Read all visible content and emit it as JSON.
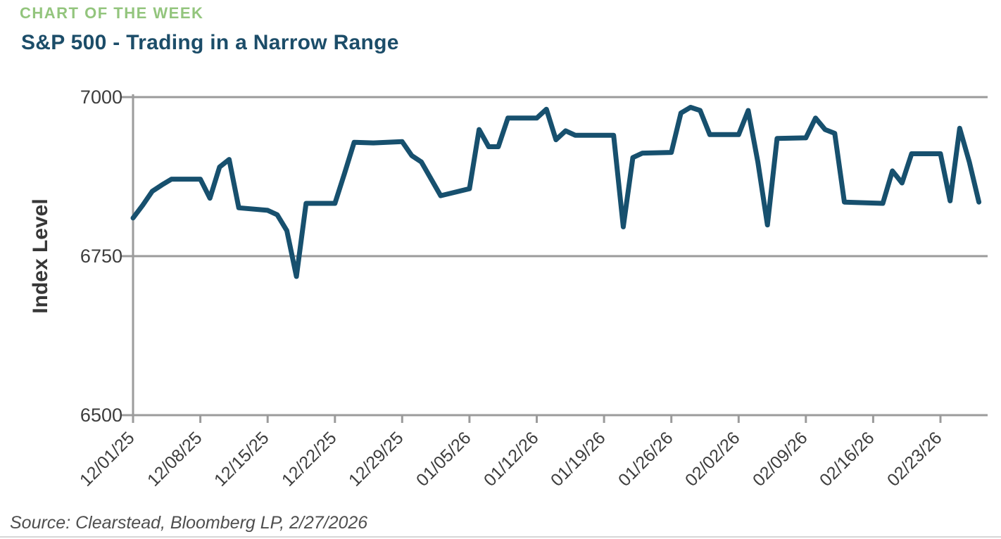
{
  "header": {
    "eyebrow": "CHART OF THE WEEK",
    "title": "S&P 500 - Trading in a Narrow Range"
  },
  "footer": {
    "source": "Source: Clearstead, Bloomberg LP, 2/27/2026"
  },
  "colors": {
    "eyebrow_green": "#93C57D",
    "title_navy": "#1C4D69",
    "line_blue": "#17506E",
    "axis_gray": "#9B9B9B",
    "tick_label_gray": "#3D3D3D",
    "source_gray": "#4F4F4F"
  },
  "chart_data": {
    "type": "line",
    "title": "S&P 500 - Trading in a Narrow Range",
    "xlabel": "",
    "ylabel": "Index Level",
    "ylim": [
      6500,
      7000
    ],
    "y_ticks": [
      7000,
      6750,
      6500
    ],
    "x_tick_labels": [
      "12/01/25",
      "12/08/25",
      "12/15/25",
      "12/22/25",
      "12/29/25",
      "01/05/26",
      "01/12/26",
      "01/19/26",
      "01/26/26",
      "02/02/26",
      "02/09/26",
      "02/16/26",
      "02/23/26"
    ],
    "grid": "horizontal-gridlines-at-y-ticks",
    "legend": "none",
    "series": [
      {
        "name": "S&P 500 Index Level",
        "color": "#17506E",
        "points": [
          {
            "date": "12/01/25",
            "value": 6810
          },
          {
            "date": "12/02/25",
            "value": 6830
          },
          {
            "date": "12/03/25",
            "value": 6852
          },
          {
            "date": "12/04/25",
            "value": 6862
          },
          {
            "date": "12/05/25",
            "value": 6871
          },
          {
            "date": "12/08/25",
            "value": 6871
          },
          {
            "date": "12/09/25",
            "value": 6841
          },
          {
            "date": "12/10/25",
            "value": 6890
          },
          {
            "date": "12/11/25",
            "value": 6902
          },
          {
            "date": "12/12/25",
            "value": 6826
          },
          {
            "date": "12/15/25",
            "value": 6822
          },
          {
            "date": "12/16/25",
            "value": 6815
          },
          {
            "date": "12/17/25",
            "value": 6790
          },
          {
            "date": "12/18/25",
            "value": 6718
          },
          {
            "date": "12/19/25",
            "value": 6833
          },
          {
            "date": "12/22/25",
            "value": 6833
          },
          {
            "date": "12/23/25",
            "value": 6880
          },
          {
            "date": "12/24/25",
            "value": 6929
          },
          {
            "date": "12/26/25",
            "value": 6928
          },
          {
            "date": "12/29/25",
            "value": 6930
          },
          {
            "date": "12/30/25",
            "value": 6908
          },
          {
            "date": "12/31/25",
            "value": 6898
          },
          {
            "date": "01/02/26",
            "value": 6845
          },
          {
            "date": "01/05/26",
            "value": 6856
          },
          {
            "date": "01/06/26",
            "value": 6949
          },
          {
            "date": "01/07/26",
            "value": 6922
          },
          {
            "date": "01/08/26",
            "value": 6922
          },
          {
            "date": "01/09/26",
            "value": 6967
          },
          {
            "date": "01/12/26",
            "value": 6967
          },
          {
            "date": "01/13/26",
            "value": 6981
          },
          {
            "date": "01/14/26",
            "value": 6933
          },
          {
            "date": "01/15/26",
            "value": 6947
          },
          {
            "date": "01/16/26",
            "value": 6940
          },
          {
            "date": "01/20/26",
            "value": 6940
          },
          {
            "date": "01/21/26",
            "value": 6796
          },
          {
            "date": "01/22/26",
            "value": 6905
          },
          {
            "date": "01/23/26",
            "value": 6912
          },
          {
            "date": "01/26/26",
            "value": 6913
          },
          {
            "date": "01/27/26",
            "value": 6975
          },
          {
            "date": "01/28/26",
            "value": 6984
          },
          {
            "date": "01/29/26",
            "value": 6979
          },
          {
            "date": "01/30/26",
            "value": 6941
          },
          {
            "date": "02/02/26",
            "value": 6941
          },
          {
            "date": "02/03/26",
            "value": 6979
          },
          {
            "date": "02/04/26",
            "value": 6898
          },
          {
            "date": "02/05/26",
            "value": 6799
          },
          {
            "date": "02/06/26",
            "value": 6935
          },
          {
            "date": "02/09/26",
            "value": 6936
          },
          {
            "date": "02/10/26",
            "value": 6967
          },
          {
            "date": "02/11/26",
            "value": 6949
          },
          {
            "date": "02/12/26",
            "value": 6943
          },
          {
            "date": "02/13/26",
            "value": 6835
          },
          {
            "date": "02/17/26",
            "value": 6833
          },
          {
            "date": "02/18/26",
            "value": 6884
          },
          {
            "date": "02/19/26",
            "value": 6865
          },
          {
            "date": "02/20/26",
            "value": 6911
          },
          {
            "date": "02/23/26",
            "value": 6911
          },
          {
            "date": "02/24/26",
            "value": 6837
          },
          {
            "date": "02/25/26",
            "value": 6951
          },
          {
            "date": "02/26/26",
            "value": 6898
          },
          {
            "date": "02/27/26",
            "value": 6835
          }
        ]
      }
    ]
  }
}
